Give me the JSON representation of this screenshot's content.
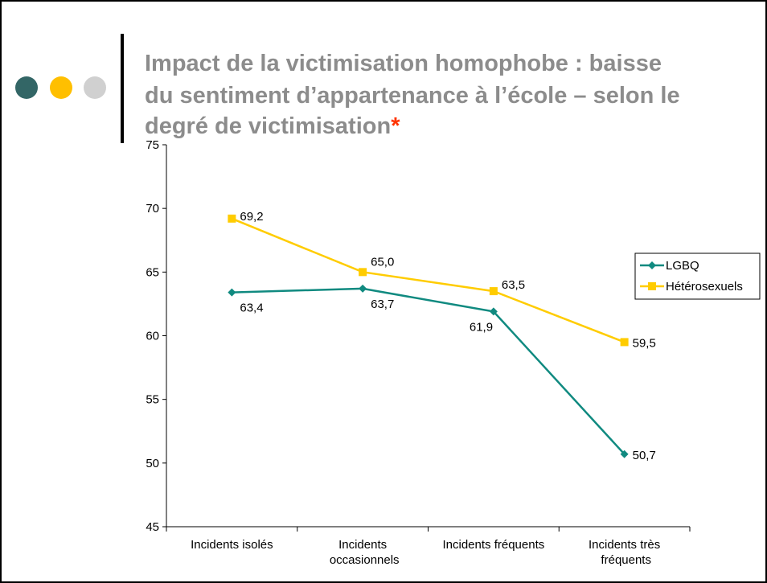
{
  "chart_data": {
    "type": "line",
    "title": [
      "Impact de la victimisation homophobe : baisse",
      "du sentiment d’appartenance à l’école – selon le",
      "degré de victimisation"
    ],
    "title_mark": "*",
    "categories": [
      "Incidents isolés",
      "Incidents occasionnels",
      "Incidents fréquents",
      "Incidents très fréquents"
    ],
    "series": [
      {
        "name": "LGBQ",
        "color": "#108a80",
        "marker": "diamond",
        "values": [
          63.4,
          63.7,
          61.9,
          50.7
        ],
        "value_labels": [
          "63,4",
          "63,7",
          "61,9",
          "50,7"
        ]
      },
      {
        "name": "Hétérosexuels",
        "color": "#ffcc00",
        "marker": "square",
        "values": [
          69.2,
          65.0,
          63.5,
          59.5
        ],
        "value_labels": [
          "69,2",
          "65,0",
          "63,5",
          "59,5"
        ]
      }
    ],
    "ylim": [
      45,
      75
    ],
    "yticks": [
      45,
      50,
      55,
      60,
      65,
      70,
      75
    ],
    "grid": false,
    "legend": "right"
  }
}
